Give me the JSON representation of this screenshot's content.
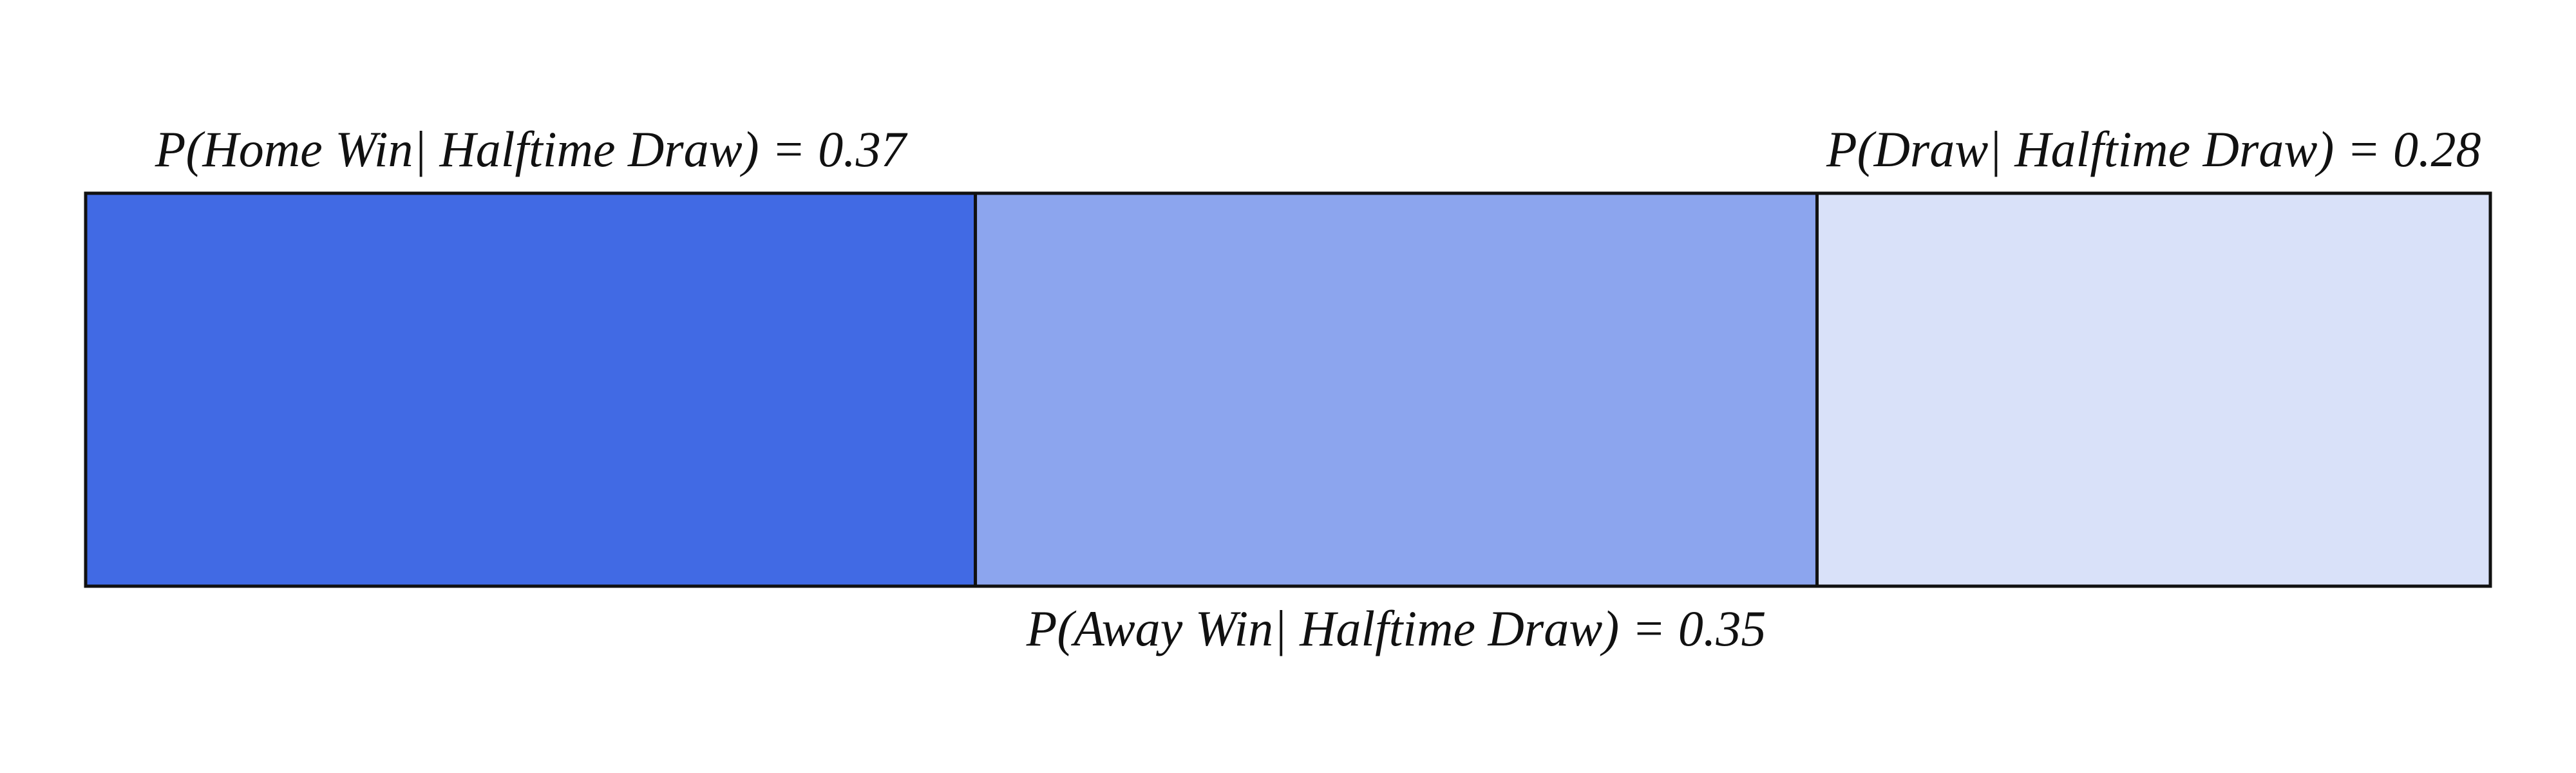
{
  "chart_data": {
    "type": "bar",
    "orientation": "horizontal-stacked",
    "title": "",
    "xlabel": "",
    "ylabel": "",
    "xlim": [
      0,
      1
    ],
    "grid": false,
    "segments": [
      {
        "name": "Home Win",
        "value": 0.37,
        "label": "P(Home Win| Halftime Draw) = 0.37",
        "label_side": "above",
        "color": "#416ae4"
      },
      {
        "name": "Away Win",
        "value": 0.35,
        "label": "P(Away Win| Halftime Draw) = 0.35",
        "label_side": "below",
        "color": "#8ca5ee"
      },
      {
        "name": "Draw",
        "value": 0.28,
        "label": "P(Draw| Halftime Draw) = 0.28",
        "label_side": "above",
        "color": "#d9e1f9"
      }
    ]
  }
}
